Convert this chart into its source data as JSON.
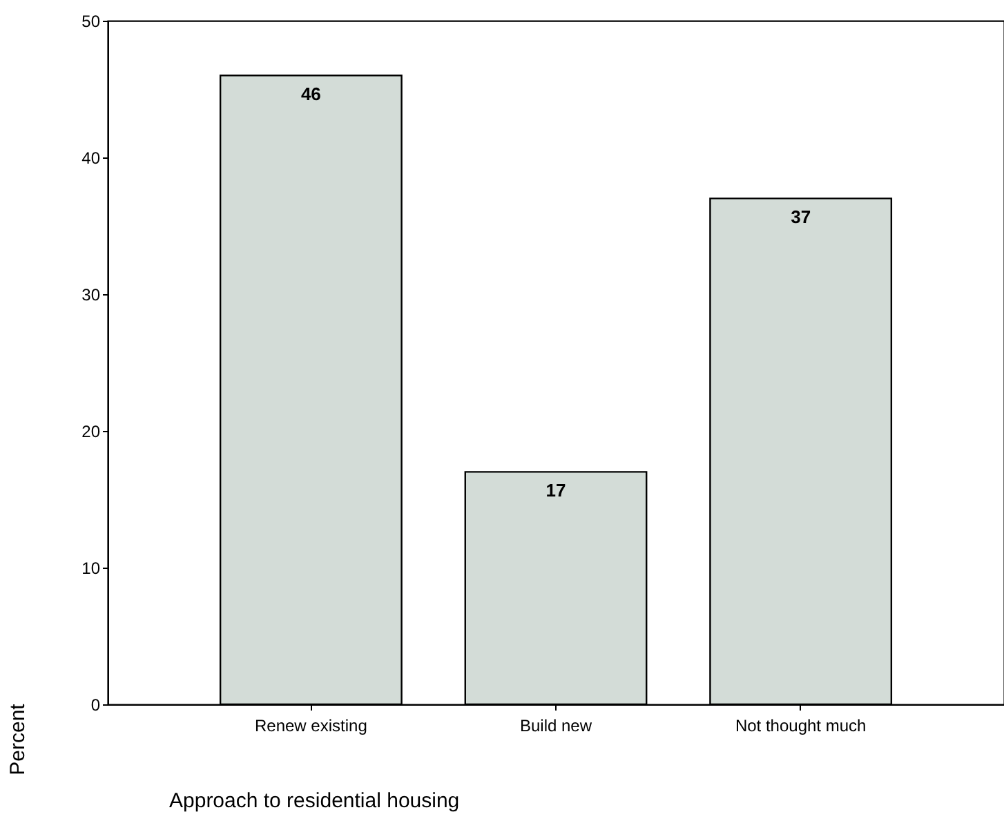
{
  "chart_data": {
    "type": "bar",
    "xlabel": "Approach to residential housing",
    "ylabel": "Percent",
    "categories": [
      "Renew existing",
      "Build new",
      "Not thought much"
    ],
    "values": [
      46,
      17,
      37
    ],
    "color": "#d3dcd7",
    "ylim": [
      0,
      50
    ],
    "yticks": [
      0,
      10,
      20,
      30,
      40,
      50
    ],
    "grid": false,
    "data_labels": true
  }
}
